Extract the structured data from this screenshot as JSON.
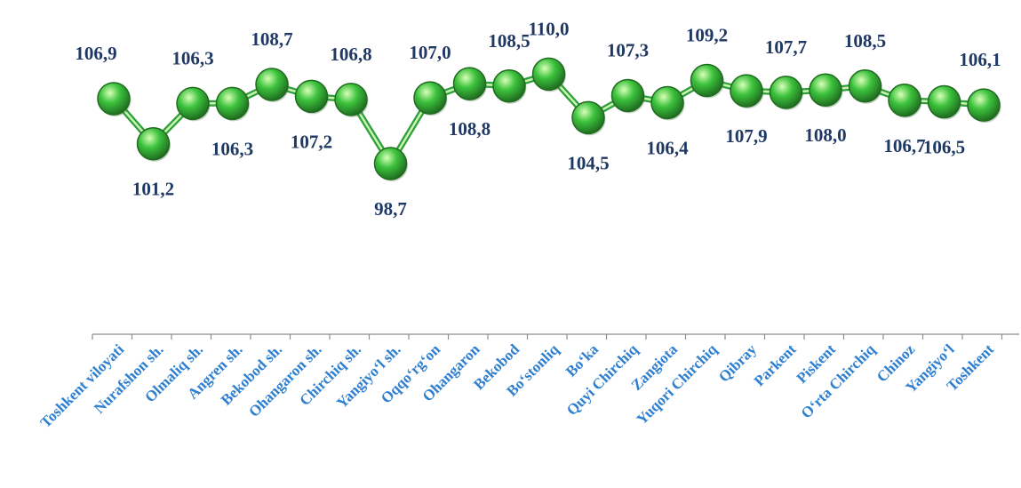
{
  "chart_data": {
    "type": "line",
    "categories": [
      "Toshkent viloyati",
      "Nurafshon sh.",
      "Olmaliq sh.",
      "Angren sh.",
      "Bekobod sh.",
      "Ohangaron sh.",
      "Chirchiq sh.",
      "Yangiyo‘l sh.",
      "Oqqo‘rg‘on",
      "Ohangaron",
      "Bekobod",
      "Bo‘stonliq",
      "Bo‘ka",
      "Quyi Chirchiq",
      "Zangiota",
      "Yuqori Chirchiq",
      "Qibray",
      "Parkent",
      "Piskent",
      "O‘rta Chirchiq",
      "Chinoz",
      "Yangiyo‘l",
      "Toshkent"
    ],
    "series": [
      {
        "values": [
          106.9,
          101.2,
          106.3,
          106.3,
          108.7,
          107.2,
          106.8,
          98.7,
          107.0,
          108.8,
          108.5,
          110.0,
          104.5,
          107.3,
          106.4,
          109.2,
          107.9,
          107.7,
          108.0,
          108.5,
          106.7,
          106.5,
          106.1
        ],
        "labels": [
          "106,9",
          "101,2",
          "106,3",
          "106,3",
          "108,7",
          "107,2",
          "106,8",
          "98,7",
          "107,0",
          "108,8",
          "108,5",
          "110,0",
          "104,5",
          "107,3",
          "106,4",
          "109,2",
          "107,9",
          "107,7",
          "108,0",
          "108,5",
          "106,7",
          "106,5",
          "106,1"
        ],
        "label_positions": [
          "above",
          "below",
          "above",
          "below",
          "above",
          "below",
          "above",
          "below",
          "above",
          "below",
          "above",
          "above",
          "below",
          "above",
          "below",
          "above",
          "below",
          "above",
          "below",
          "above",
          "below",
          "below",
          "above"
        ]
      }
    ],
    "title": "",
    "xlabel": "",
    "ylabel": "",
    "grid": false,
    "legend": "none",
    "colors": {
      "line": "#2e9e3a",
      "line_inner": "#c8f5b0",
      "marker": "#3cc23c",
      "marker_highlight": "#d8ffb8",
      "marker_edge": "#1f6b1f",
      "value_text": "#1f3864",
      "category_text": "#2e7fd0",
      "axis": "#8c8c8c"
    }
  }
}
